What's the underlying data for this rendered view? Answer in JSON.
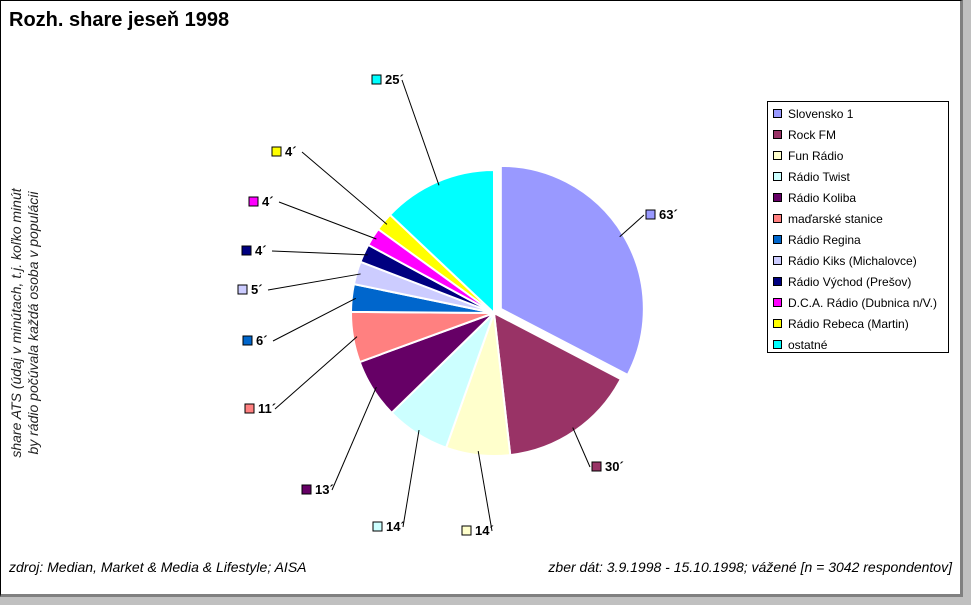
{
  "title": "Rozh. share jeseň 1998",
  "ylabel_line1": "share ATS (údaj v minútach, t.j. koľko minút",
  "ylabel_line2": "by rádio počúvala každá osoba v populácii",
  "source": "zdroj: Median, Market & Media & Lifestyle; AISA",
  "collection": "zber dát: 3.9.1998 - 15.10.1998; vážené [n = 3042 respondentov]",
  "chart_data": {
    "type": "pie",
    "title": "Rozh. share jeseň 1998",
    "unit_suffix": "´",
    "legend_position": "right",
    "exploded": [
      "Slovensko 1"
    ],
    "slices": [
      {
        "name": "Slovensko 1",
        "value": 63,
        "label": "63´",
        "color": "#9999ff"
      },
      {
        "name": "Rock FM",
        "value": 30,
        "label": "30´",
        "color": "#993366"
      },
      {
        "name": "Fun Rádio",
        "value": 14,
        "label": "14´",
        "color": "#ffffcc"
      },
      {
        "name": "Rádio Twist",
        "value": 14,
        "label": "14´",
        "color": "#ccffff"
      },
      {
        "name": "Rádio Koliba",
        "value": 13,
        "label": "13´",
        "color": "#660066"
      },
      {
        "name": "maďarské stanice",
        "value": 11,
        "label": "11´",
        "color": "#ff8080"
      },
      {
        "name": "Rádio Regina",
        "value": 6,
        "label": "6´",
        "color": "#0066cc"
      },
      {
        "name": "Rádio Kiks (Michalovce)",
        "value": 5,
        "label": "5´",
        "color": "#ccccff"
      },
      {
        "name": "Rádio Východ (Prešov)",
        "value": 4,
        "label": "4´",
        "color": "#000080"
      },
      {
        "name": "D.C.A. Rádio (Dubnica n/V.)",
        "value": 4,
        "label": "4´",
        "color": "#ff00ff"
      },
      {
        "name": "Rádio Rebeca (Martin)",
        "value": 4,
        "label": "4´",
        "color": "#ffff00"
      },
      {
        "name": "ostatné",
        "value": 25,
        "label": "25´",
        "color": "#00ffff"
      }
    ]
  }
}
